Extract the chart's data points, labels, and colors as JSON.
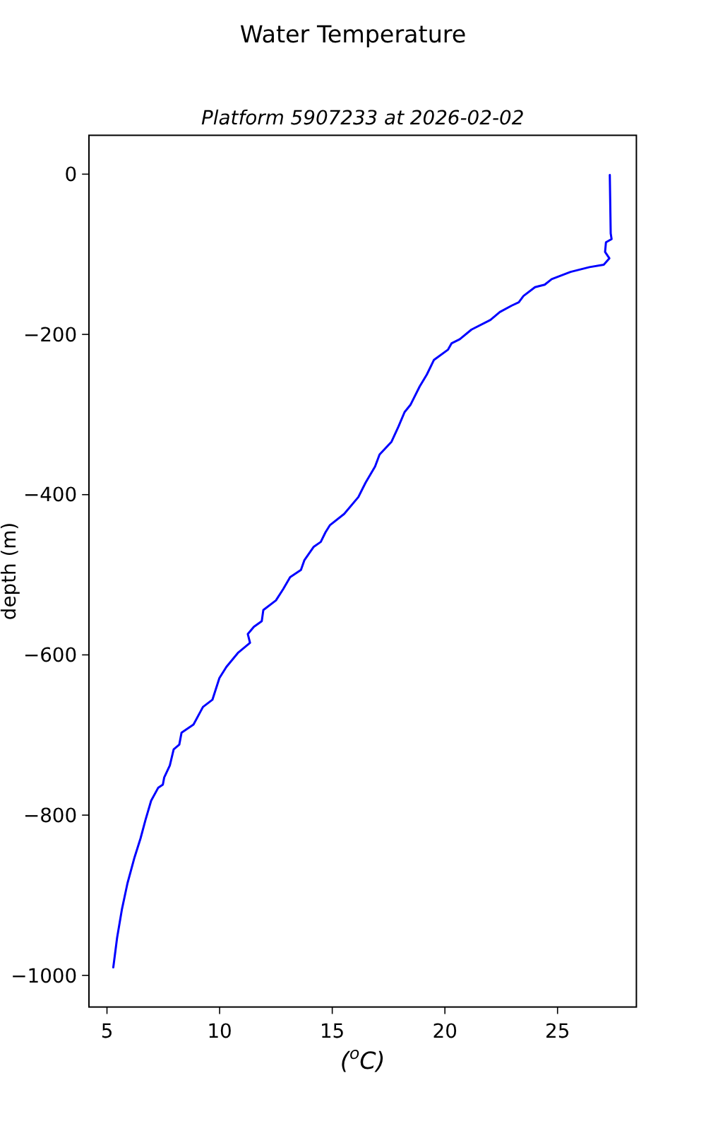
{
  "chart_data": {
    "type": "line",
    "title": "Water Temperature",
    "subtitle": "Platform 5907233 at 2026-02-02",
    "xlabel": "($^{o}$C)",
    "ylabel": "depth (m)",
    "line_style": "solid",
    "xlim": [
      4.2,
      28.5
    ],
    "xticks": [
      5,
      10,
      15,
      20,
      25
    ],
    "ylim": [
      -1039.5,
      48.5
    ],
    "yticks": [
      0,
      {
        "value": -200,
        "label": "−200"
      },
      {
        "value": -400,
        "label": "−400"
      },
      {
        "value": -600,
        "label": "−600"
      },
      {
        "value": -800,
        "label": "−800"
      },
      {
        "value": -1000,
        "label": "−1000"
      }
    ],
    "series": [
      {
        "color": "#0000ff",
        "x": [
          27.32,
          27.36,
          27.4,
          27.15,
          27.11,
          27.3,
          27.05,
          26.42,
          25.58,
          24.74,
          24.43,
          24.0,
          23.49,
          23.28,
          22.97,
          22.44,
          22.02,
          21.18,
          20.66,
          20.3,
          20.14,
          19.51,
          19.2,
          18.88,
          18.47,
          18.21,
          17.94,
          17.63,
          17.1,
          16.9,
          16.48,
          16.16,
          15.53,
          14.9,
          14.7,
          14.49,
          14.18,
          13.76,
          13.61,
          13.13,
          12.82,
          12.5,
          11.94,
          11.87,
          11.52,
          11.25,
          11.35,
          10.83,
          10.3,
          9.99,
          9.68,
          9.26,
          8.84,
          8.31,
          8.21,
          7.96,
          7.79,
          7.54,
          7.48,
          7.27,
          6.96,
          6.71,
          6.49,
          6.22,
          5.91,
          5.66,
          5.45,
          5.28
        ],
        "values": [
          -1,
          -74,
          -81,
          -85,
          -97,
          -105,
          -113,
          -116,
          -122,
          -131,
          -138,
          -141,
          -152,
          -160,
          -164,
          -172,
          -182,
          -194,
          -206,
          -211,
          -219,
          -232,
          -250,
          -265,
          -288,
          -297,
          -315,
          -334,
          -350,
          -365,
          -385,
          -403,
          -424,
          -438,
          -447,
          -459,
          -465,
          -482,
          -494,
          -503,
          -518,
          -532,
          -544,
          -558,
          -565,
          -574,
          -585,
          -597,
          -615,
          -629,
          -656,
          -665,
          -687,
          -697,
          -712,
          -718,
          -738,
          -753,
          -762,
          -766,
          -782,
          -806,
          -829,
          -853,
          -885,
          -918,
          -953,
          -990
        ]
      }
    ]
  }
}
